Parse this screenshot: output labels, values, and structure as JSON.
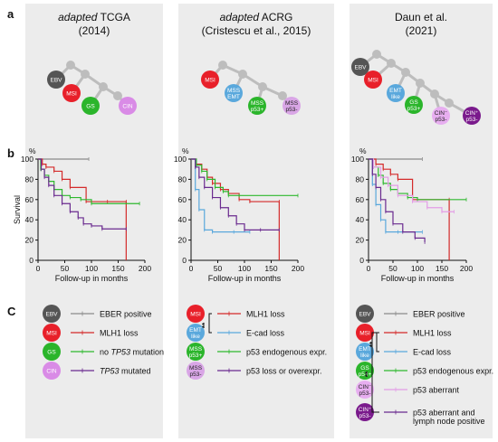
{
  "row_labels": {
    "a": "a",
    "b": "b",
    "c": "C"
  },
  "panels": [
    {
      "title_italic": "adapted",
      "title_rest": " TCGA",
      "subtitle": "(2014)"
    },
    {
      "title_italic": "adapted",
      "title_rest": " ACRG",
      "subtitle": "(Cristescu et al., 2015)"
    },
    {
      "title_italic": "",
      "title_rest": "Daun et al.",
      "subtitle": "(2021)"
    }
  ],
  "colors": {
    "EBV": "#555555",
    "MSI": "#e8202a",
    "GS": "#2bb52b",
    "CIN": "#d98be6",
    "EMT": "#5aa8dc",
    "MSSp53": "#c9a0dc",
    "CINneg": "#d98be6",
    "CINpos": "#7a1a8c",
    "grey_line": "#bdbdbd",
    "ebv_curve": "#8a8a8a",
    "msi_curve": "#d42a2a",
    "gs_curve": "#2eb82e",
    "cin_curve": "#6a2a8f",
    "emt_curve": "#5aa8dc",
    "p53ab_curve": "#e39ce6"
  },
  "trees": [
    {
      "nodes": [
        {
          "label": "EBV",
          "color": "#555555"
        },
        {
          "label": "MSI",
          "color": "#e8202a"
        },
        {
          "label": "GS",
          "color": "#2bb52b"
        },
        {
          "label": "CIN",
          "color": "#d98be6"
        }
      ]
    },
    {
      "nodes": [
        {
          "label": "MSI",
          "color": "#e8202a"
        },
        {
          "label": "MSS EMT",
          "color": "#5aa8dc"
        },
        {
          "label": "MSS p53+",
          "color": "#2bb52b"
        },
        {
          "label": "MSS p53-",
          "color": "#d9a6e6"
        }
      ]
    },
    {
      "nodes": [
        {
          "label": "EBV",
          "color": "#555555"
        },
        {
          "label": "MSI",
          "color": "#e8202a"
        },
        {
          "label": "EMT like",
          "color": "#5aa8dc"
        },
        {
          "label": "GS p53+",
          "color": "#2bb52b"
        },
        {
          "label": "CINneg p53-",
          "color": "#e7aef0"
        },
        {
          "label": "CINpos p53-",
          "color": "#7a1a8c"
        }
      ]
    }
  ],
  "chart_data": [
    {
      "type": "line",
      "title": "",
      "xlabel": "Follow-up in months",
      "ylabel": "Survival",
      "y_unit": "%",
      "xlim": [
        0,
        200
      ],
      "ylim": [
        0,
        100
      ],
      "xticks": [
        "0",
        "50",
        "100",
        "150",
        "200"
      ],
      "yticks": [
        "0",
        "20",
        "40",
        "60",
        "80",
        "100"
      ],
      "series": [
        {
          "color": "#8a8a8a",
          "x": [
            0,
            95
          ],
          "y": [
            100,
            100
          ]
        },
        {
          "color": "#d42a2a",
          "x": [
            0,
            8,
            15,
            30,
            45,
            60,
            90,
            130,
            165,
            165
          ],
          "y": [
            100,
            95,
            92,
            88,
            80,
            72,
            58,
            58,
            58,
            0
          ]
        },
        {
          "color": "#2eb82e",
          "x": [
            0,
            5,
            12,
            20,
            30,
            45,
            60,
            80,
            100,
            190
          ],
          "y": [
            100,
            90,
            84,
            78,
            70,
            64,
            62,
            60,
            56,
            56
          ]
        },
        {
          "color": "#6a2a8f",
          "x": [
            0,
            6,
            12,
            20,
            30,
            45,
            60,
            75,
            85,
            100,
            120,
            165
          ],
          "y": [
            100,
            90,
            82,
            74,
            64,
            56,
            48,
            42,
            36,
            34,
            31,
            31
          ]
        }
      ]
    },
    {
      "type": "line",
      "title": "",
      "xlabel": "Follow-up in months",
      "ylabel": "",
      "y_unit": "%",
      "xlim": [
        0,
        200
      ],
      "ylim": [
        0,
        100
      ],
      "xticks": [
        "0",
        "50",
        "100",
        "150",
        "200"
      ],
      "yticks": [
        "0",
        "20",
        "40",
        "60",
        "80",
        "100"
      ],
      "series": [
        {
          "color": "#d42a2a",
          "x": [
            0,
            10,
            20,
            30,
            40,
            55,
            70,
            90,
            110,
            165,
            165
          ],
          "y": [
            100,
            95,
            90,
            82,
            76,
            70,
            66,
            60,
            58,
            58,
            0
          ]
        },
        {
          "color": "#5aa8dc",
          "x": [
            0,
            8,
            15,
            25,
            40,
            80,
            110
          ],
          "y": [
            100,
            70,
            50,
            30,
            28,
            28,
            28
          ]
        },
        {
          "color": "#2eb82e",
          "x": [
            0,
            10,
            20,
            30,
            45,
            60,
            70,
            90,
            200
          ],
          "y": [
            100,
            94,
            88,
            80,
            72,
            68,
            64,
            64,
            64
          ]
        },
        {
          "color": "#6a2a8f",
          "x": [
            0,
            8,
            15,
            25,
            40,
            55,
            70,
            85,
            100,
            130,
            165
          ],
          "y": [
            100,
            92,
            82,
            72,
            62,
            52,
            44,
            36,
            30,
            30,
            30
          ]
        }
      ]
    },
    {
      "type": "line",
      "title": "",
      "xlabel": "Follow-up in months",
      "ylabel": "",
      "y_unit": "%",
      "xlim": [
        0,
        200
      ],
      "ylim": [
        0,
        100
      ],
      "xticks": [
        "0",
        "50",
        "100",
        "150",
        "200"
      ],
      "yticks": [
        "0",
        "20",
        "40",
        "60",
        "80",
        "100"
      ],
      "series": [
        {
          "color": "#8a8a8a",
          "x": [
            0,
            110
          ],
          "y": [
            100,
            100
          ]
        },
        {
          "color": "#d42a2a",
          "x": [
            0,
            15,
            30,
            45,
            60,
            90,
            165,
            165
          ],
          "y": [
            100,
            95,
            90,
            85,
            80,
            60,
            60,
            0
          ]
        },
        {
          "color": "#5aa8dc",
          "x": [
            0,
            8,
            15,
            25,
            35,
            60,
            110
          ],
          "y": [
            100,
            75,
            55,
            40,
            28,
            28,
            28
          ]
        },
        {
          "color": "#2eb82e",
          "x": [
            0,
            10,
            20,
            30,
            45,
            60,
            80,
            100,
            200
          ],
          "y": [
            100,
            92,
            84,
            76,
            70,
            66,
            62,
            60,
            60
          ]
        },
        {
          "color": "#e39ce6",
          "x": [
            0,
            10,
            25,
            40,
            60,
            90,
            120,
            150,
            175
          ],
          "y": [
            100,
            92,
            82,
            74,
            64,
            58,
            52,
            48,
            48
          ]
        },
        {
          "color": "#6a2a8f",
          "x": [
            0,
            8,
            15,
            25,
            35,
            50,
            70,
            95,
            115
          ],
          "y": [
            100,
            85,
            72,
            60,
            48,
            36,
            28,
            22,
            18
          ]
        }
      ]
    }
  ],
  "legends": [
    {
      "items": [
        {
          "node": "EBV",
          "color": "#555555",
          "line": "#8a8a8a",
          "text": "EBER positive",
          "italic": ""
        },
        {
          "node": "MSI",
          "color": "#e8202a",
          "line": "#d42a2a",
          "text": "MLH1 loss",
          "italic": ""
        },
        {
          "node": "GS",
          "color": "#2bb52b",
          "line": "#2eb82e",
          "text_pre": "no ",
          "italic": "TP53",
          "text": " mutation"
        },
        {
          "node": "CIN",
          "color": "#d98be6",
          "line": "#6a2a8f",
          "italic": "TP53",
          "text": " mutated"
        }
      ]
    },
    {
      "items": [
        {
          "node": "MSI",
          "color": "#e8202a",
          "line": "#d42a2a",
          "text": "MLH1 loss"
        },
        {
          "node": "EMT like",
          "color": "#5aa8dc",
          "line": "#5aa8dc",
          "text": "E-cad loss"
        },
        {
          "node": "MSS p53+",
          "color": "#2bb52b",
          "line": "#2eb82e",
          "text": "p53 endogenous expr."
        },
        {
          "node": "MSS p53-",
          "color": "#d9a6e6",
          "line": "#6a2a8f",
          "text": "p53 loss or overexpr."
        }
      ],
      "sig": "**"
    },
    {
      "items": [
        {
          "node": "EBV",
          "color": "#555555",
          "line": "#8a8a8a",
          "text": "EBER positive"
        },
        {
          "node": "MSI",
          "color": "#e8202a",
          "line": "#d42a2a",
          "text": "MLH1 loss"
        },
        {
          "node": "EMT like",
          "color": "#5aa8dc",
          "line": "#5aa8dc",
          "text": "E-cad loss"
        },
        {
          "node": "GS p53+",
          "color": "#2bb52b",
          "line": "#2eb82e",
          "text": "p53 endogenous expr."
        },
        {
          "node": "CINneg p53-",
          "color": "#e7aef0",
          "line": "#e39ce6",
          "text": "p53 aberrant"
        },
        {
          "node": "CINpos p53-",
          "color": "#7a1a8c",
          "line": "#6a2a8f",
          "text": "p53 aberrant and",
          "text2": "lymph node positive"
        }
      ],
      "sig1": "**",
      "sig2": "**"
    }
  ]
}
